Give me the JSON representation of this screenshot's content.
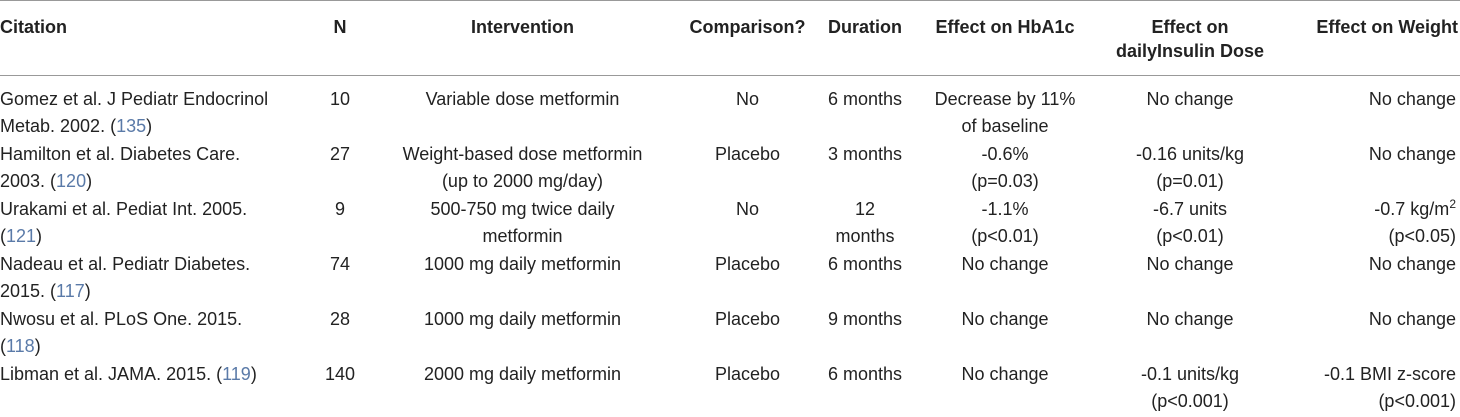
{
  "headers": {
    "citation": "Citation",
    "n": "N",
    "intervention": "Intervention",
    "comparison": "Comparison?",
    "duration": "Duration",
    "hba1c": "Effect on HbA1c",
    "insulin_1": "Effect on",
    "insulin_2": "dailyInsulin Dose",
    "weight": "Effect on Weight"
  },
  "rows": [
    {
      "cite_1": "Gomez et al. J Pediatr Endocrinol",
      "cite_2": "Metab. 2002. (",
      "ref": "135",
      "cite_close": ")",
      "n": "10",
      "intervention_1": "Variable dose metformin",
      "intervention_2": "",
      "comparison": "No",
      "duration_1": "6 months",
      "duration_2": "",
      "hba1c_1": "Decrease by 11%",
      "hba1c_2": "of baseline",
      "insulin_1": "No change",
      "insulin_2": "",
      "weight_1": "No change",
      "weight_2": ""
    },
    {
      "cite_1": "Hamilton et al. Diabetes Care.",
      "cite_2": "2003. (",
      "ref": "120",
      "cite_close": ")",
      "n": "27",
      "intervention_1": "Weight-based dose metformin",
      "intervention_2": "(up to 2000 mg/day)",
      "comparison": "Placebo",
      "duration_1": "3 months",
      "duration_2": "",
      "hba1c_1": "-0.6%",
      "hba1c_2": "(p=0.03)",
      "insulin_1": "-0.16 units/kg",
      "insulin_2": "(p=0.01)",
      "weight_1": "No change",
      "weight_2": ""
    },
    {
      "cite_1": "Urakami et al. Pediat Int. 2005.",
      "cite_2": "(",
      "ref": "121",
      "cite_close": ")",
      "n": "9",
      "intervention_1": "500-750 mg twice daily",
      "intervention_2": "metformin",
      "comparison": "No",
      "duration_1": "12",
      "duration_2": "months",
      "hba1c_1": "-1.1%",
      "hba1c_2": "(p<0.01)",
      "insulin_1": "-6.7 units",
      "insulin_2": "(p<0.01)",
      "weight_1": "-0.7 kg/m",
      "weight_sup": "2",
      "weight_2": "(p<0.05)"
    },
    {
      "cite_1": "Nadeau et al. Pediatr Diabetes.",
      "cite_2": "2015. (",
      "ref": "117",
      "cite_close": ")",
      "n": "74",
      "intervention_1": "1000 mg daily metformin",
      "intervention_2": "",
      "comparison": "Placebo",
      "duration_1": "6 months",
      "duration_2": "",
      "hba1c_1": "No change",
      "hba1c_2": "",
      "insulin_1": "No change",
      "insulin_2": "",
      "weight_1": "No change",
      "weight_2": ""
    },
    {
      "cite_1": "Nwosu et al. PLoS One. 2015.",
      "cite_2": "(",
      "ref": "118",
      "cite_close": ")",
      "n": "28",
      "intervention_1": "1000 mg daily metformin",
      "intervention_2": "",
      "comparison": "Placebo",
      "duration_1": "9 months",
      "duration_2": "",
      "hba1c_1": "No change",
      "hba1c_2": "",
      "insulin_1": "No change",
      "insulin_2": "",
      "weight_1": "No change",
      "weight_2": ""
    },
    {
      "cite_1": "Libman et al. JAMA. 2015. (",
      "cite_2": "",
      "ref": "119",
      "cite_close": ")",
      "n": "140",
      "intervention_1": "2000 mg daily metformin",
      "intervention_2": "",
      "comparison": "Placebo",
      "duration_1": "6 months",
      "duration_2": "",
      "hba1c_1": "No change",
      "hba1c_2": "",
      "insulin_1": "-0.1 units/kg",
      "insulin_2": "(p<0.001)",
      "weight_1": "-0.1 BMI z-score",
      "weight_2": "(p<0.001)"
    }
  ]
}
